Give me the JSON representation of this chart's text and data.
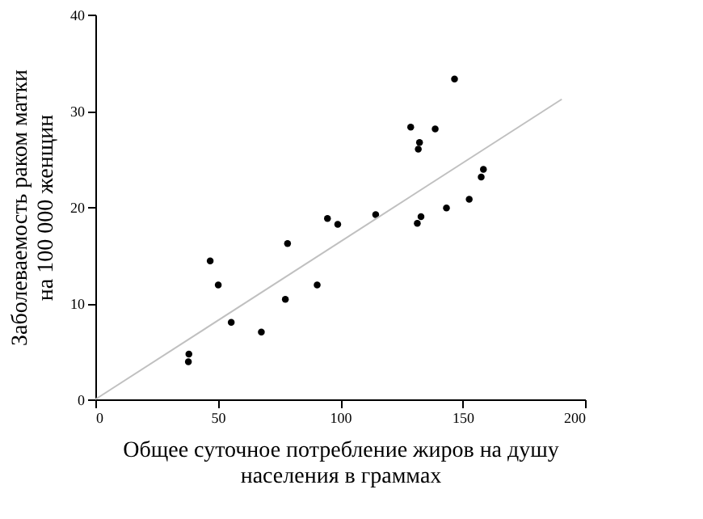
{
  "chart_data": {
    "type": "scatter",
    "xlabel": "Общее суточное потребление жиров на душу\nнаселения в граммах",
    "ylabel": "Заболеваемость раком матки\nна 100 000 женщин",
    "x": [
      38.0,
      38.2,
      46.9,
      50.2,
      55.5,
      67.8,
      77.6,
      78.5,
      90.6,
      94.8,
      99.0,
      114.5,
      128.8,
      132.4,
      131.9,
      131.5,
      133.0,
      138.8,
      143.4,
      146.7,
      152.7,
      157.6,
      158.5
    ],
    "series": [
      {
        "color": "#000000",
        "marker": "circle",
        "values": [
          3.9,
          4.7,
          14.4,
          11.9,
          8.0,
          7.0,
          10.4,
          16.2,
          11.9,
          18.8,
          18.2,
          19.2,
          28.3,
          26.7,
          26.0,
          18.3,
          19.0,
          28.1,
          19.9,
          33.3,
          20.8,
          23.1,
          23.9
        ]
      },
      {
        "type": "line",
        "color": "#c0c0c0",
        "marker": "none",
        "line_style": "solid",
        "x": [
          0,
          190.5
        ],
        "values": [
          0,
          31.2
        ]
      }
    ],
    "xlim": [
      0,
      200
    ],
    "ylim": [
      0,
      40
    ],
    "xticks": [
      0,
      50,
      100,
      150,
      200
    ],
    "yticks": [
      0,
      10,
      20,
      30,
      40
    ],
    "grid": false
  }
}
